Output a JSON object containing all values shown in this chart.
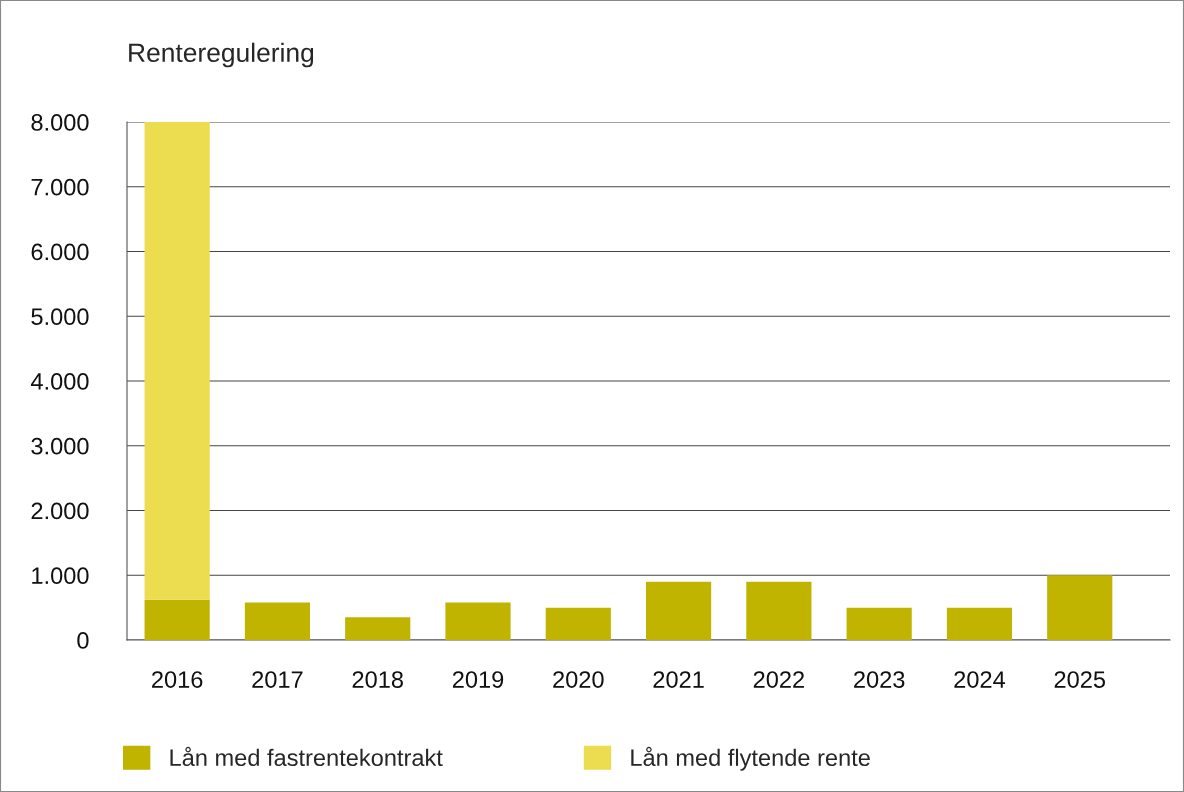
{
  "chart_data": {
    "type": "bar",
    "title": "Renteregulering",
    "stacked": true,
    "categories": [
      "2016",
      "2017",
      "2018",
      "2019",
      "2020",
      "2021",
      "2022",
      "2023",
      "2024",
      "2025"
    ],
    "series": [
      {
        "name": "Lån med fastrentekontrakt",
        "color": "#c0b400",
        "values": [
          620,
          580,
          350,
          580,
          500,
          900,
          900,
          500,
          500,
          1000
        ]
      },
      {
        "name": "Lån med flytende rente",
        "color": "#ecdc50",
        "values": [
          7380,
          null,
          null,
          null,
          null,
          null,
          null,
          null,
          null,
          null
        ]
      }
    ],
    "ylim": [
      0,
      8000
    ],
    "yticks": [
      0,
      {
        "value": 1000,
        "label": "1.000"
      },
      {
        "value": 2000,
        "label": "2.000"
      },
      {
        "value": 3000,
        "label": "3.000"
      },
      {
        "value": 4000,
        "label": "4.000"
      },
      {
        "value": 5000,
        "label": "5.000"
      },
      {
        "value": 6000,
        "label": "6.000"
      },
      {
        "value": 7000,
        "label": "7.000"
      },
      {
        "value": 8000,
        "label": "8.000"
      }
    ],
    "grid": "y",
    "legend": "bottom"
  }
}
